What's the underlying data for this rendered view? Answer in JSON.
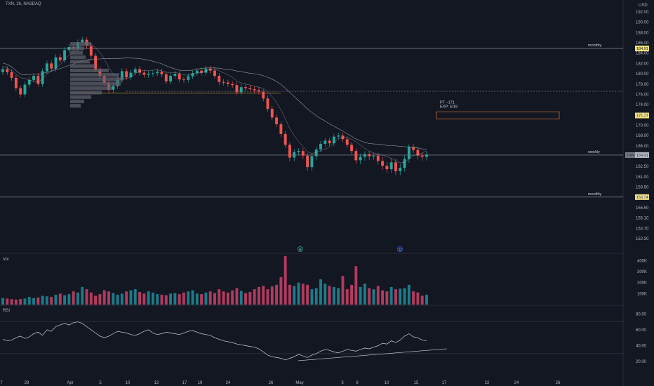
{
  "header": {
    "symbol_line": "TXN, 2h, NASDAQ"
  },
  "currency": "USD",
  "panes": {
    "volume_label": "Vol",
    "rsi_label": "RSI"
  },
  "colors": {
    "bg": "#131722",
    "up": "#26a69a",
    "down": "#ef5350",
    "vol_up": "#1c7b88",
    "vol_down": "#b33a5e",
    "level_line": "#d1d4dc",
    "tag_bg": "#f3e27b",
    "box": "#e07a2e",
    "rsi_line": "#d1d4dc"
  },
  "chart_data": [
    {
      "type": "candlestick",
      "title": "TXN, 2h, NASDAQ",
      "y_ticks": [
        "192.00",
        "190.00",
        "188.00",
        "186.00",
        "184.00",
        "182.00",
        "180.00",
        "178.00",
        "176.00",
        "174.00",
        "172.00",
        "170.00",
        "168.00",
        "166.00",
        "164.00",
        "162.50",
        "161.00",
        "159.50",
        "158.00",
        "156.50",
        "155.10",
        "153.70",
        "152.30"
      ],
      "y_tick_values": [
        192,
        190,
        188,
        186,
        184,
        182,
        180,
        178,
        176,
        174,
        172,
        170,
        168,
        166,
        164,
        162.5,
        161,
        159.5,
        158,
        156.5,
        155.1,
        153.7,
        152.3
      ],
      "x_tick_labels": [
        "7",
        "29",
        "Apr",
        "5",
        "10",
        "12",
        "17",
        "19",
        "24",
        "26",
        "May",
        "3",
        "8",
        "10",
        "15",
        "17",
        "22",
        "24",
        "26"
      ],
      "horizontal_levels": [
        {
          "label": "monthly",
          "value": 184.91,
          "tag": "184.91"
        },
        {
          "label": "weekly",
          "value": 164.22,
          "tag": "164.22"
        },
        {
          "label": "monthly",
          "value": 158.04,
          "tag": "158.04"
        }
      ],
      "dotted_level": 176.6,
      "orange_level": 176.5,
      "target_box": {
        "label_line1": "PT ~171",
        "label_line2": "EXP: 5/19",
        "top": 172.6,
        "bottom": 171.2,
        "tag": "171.07"
      },
      "last_price": {
        "symbol": "TXN",
        "value": "164.21"
      },
      "earnings_markers": [
        "E",
        "D"
      ],
      "close_series": [
        180.9,
        180.3,
        179.2,
        177.2,
        176.0,
        177.9,
        178.8,
        179.6,
        178.0,
        180.5,
        182.0,
        181.0,
        183.2,
        182.6,
        184.6,
        185.2,
        184.9,
        186.1,
        186.6,
        185.4,
        183.5,
        180.8,
        179.5,
        178.2,
        176.9,
        177.6,
        178.8,
        180.5,
        179.3,
        180.2,
        180.9,
        180.2,
        179.8,
        180.0,
        180.1,
        180.4,
        179.9,
        178.5,
        179.6,
        180.0,
        178.9,
        178.8,
        179.5,
        180.1,
        180.6,
        180.2,
        181.0,
        180.6,
        179.6,
        178.4,
        178.3,
        178.0,
        177.8,
        176.4,
        177.4,
        177.2,
        177.0,
        176.8,
        176.5,
        175.2,
        173.2,
        171.5,
        170.2,
        168.3,
        166.2,
        163.8,
        164.8,
        165.0,
        164.1,
        162.4,
        164.0,
        165.3,
        166.4,
        167.0,
        166.5,
        167.8,
        168.0,
        167.3,
        166.2,
        165.0,
        163.4,
        163.9,
        164.4,
        164.0,
        164.1,
        163.3,
        162.6,
        162.1,
        163.1,
        161.8,
        162.3,
        163.6,
        165.8,
        165.2,
        164.1,
        163.9,
        164.3
      ],
      "volume_ticks": [
        "400K",
        "300K",
        "200K",
        "100K"
      ],
      "volume_tick_values": [
        400000,
        300000,
        200000,
        100000
      ],
      "volume_series": [
        60,
        55,
        50,
        45,
        50,
        55,
        70,
        60,
        65,
        80,
        75,
        70,
        90,
        100,
        85,
        95,
        120,
        110,
        160,
        140,
        110,
        80,
        95,
        130,
        120,
        105,
        90,
        100,
        120,
        130,
        140,
        115,
        100,
        120,
        110,
        95,
        90,
        85,
        100,
        105,
        95,
        110,
        120,
        130,
        100,
        95,
        110,
        120,
        105,
        140,
        120,
        110,
        130,
        150,
        125,
        105,
        115,
        140,
        160,
        170,
        140,
        165,
        180,
        250,
        440,
        180,
        170,
        200,
        190,
        180,
        140,
        150,
        230,
        190,
        170,
        160,
        150,
        260,
        140,
        180,
        350,
        160,
        190,
        150,
        140,
        170,
        130,
        120,
        160,
        140,
        145,
        150,
        180,
        120,
        110,
        80,
        90
      ],
      "rsi_ticks": [
        "80.00",
        "60.00",
        "40.00",
        "20.00"
      ],
      "rsi_tick_values": [
        80,
        60,
        40,
        20
      ],
      "rsi_series": [
        48,
        46,
        47,
        50,
        52,
        49,
        51,
        55,
        57,
        53,
        60,
        58,
        64,
        66,
        68,
        66,
        69,
        70,
        68,
        64,
        60,
        56,
        52,
        50,
        52,
        55,
        58,
        57,
        56,
        54,
        53,
        55,
        58,
        60,
        56,
        54,
        55,
        57,
        56,
        55,
        54,
        56,
        58,
        59,
        57,
        55,
        54,
        53,
        50,
        48,
        46,
        45,
        44,
        42,
        41,
        40,
        39,
        38,
        36,
        32,
        28,
        26,
        25,
        24,
        22,
        24,
        26,
        29,
        27,
        25,
        28,
        30,
        33,
        35,
        34,
        32,
        31,
        33,
        35,
        34,
        33,
        35,
        37,
        36,
        38,
        40,
        43,
        42,
        46,
        44,
        47,
        52,
        55,
        51,
        50,
        47,
        46
      ],
      "rsi_trendline": {
        "start": 21,
        "end": 36
      }
    }
  ]
}
